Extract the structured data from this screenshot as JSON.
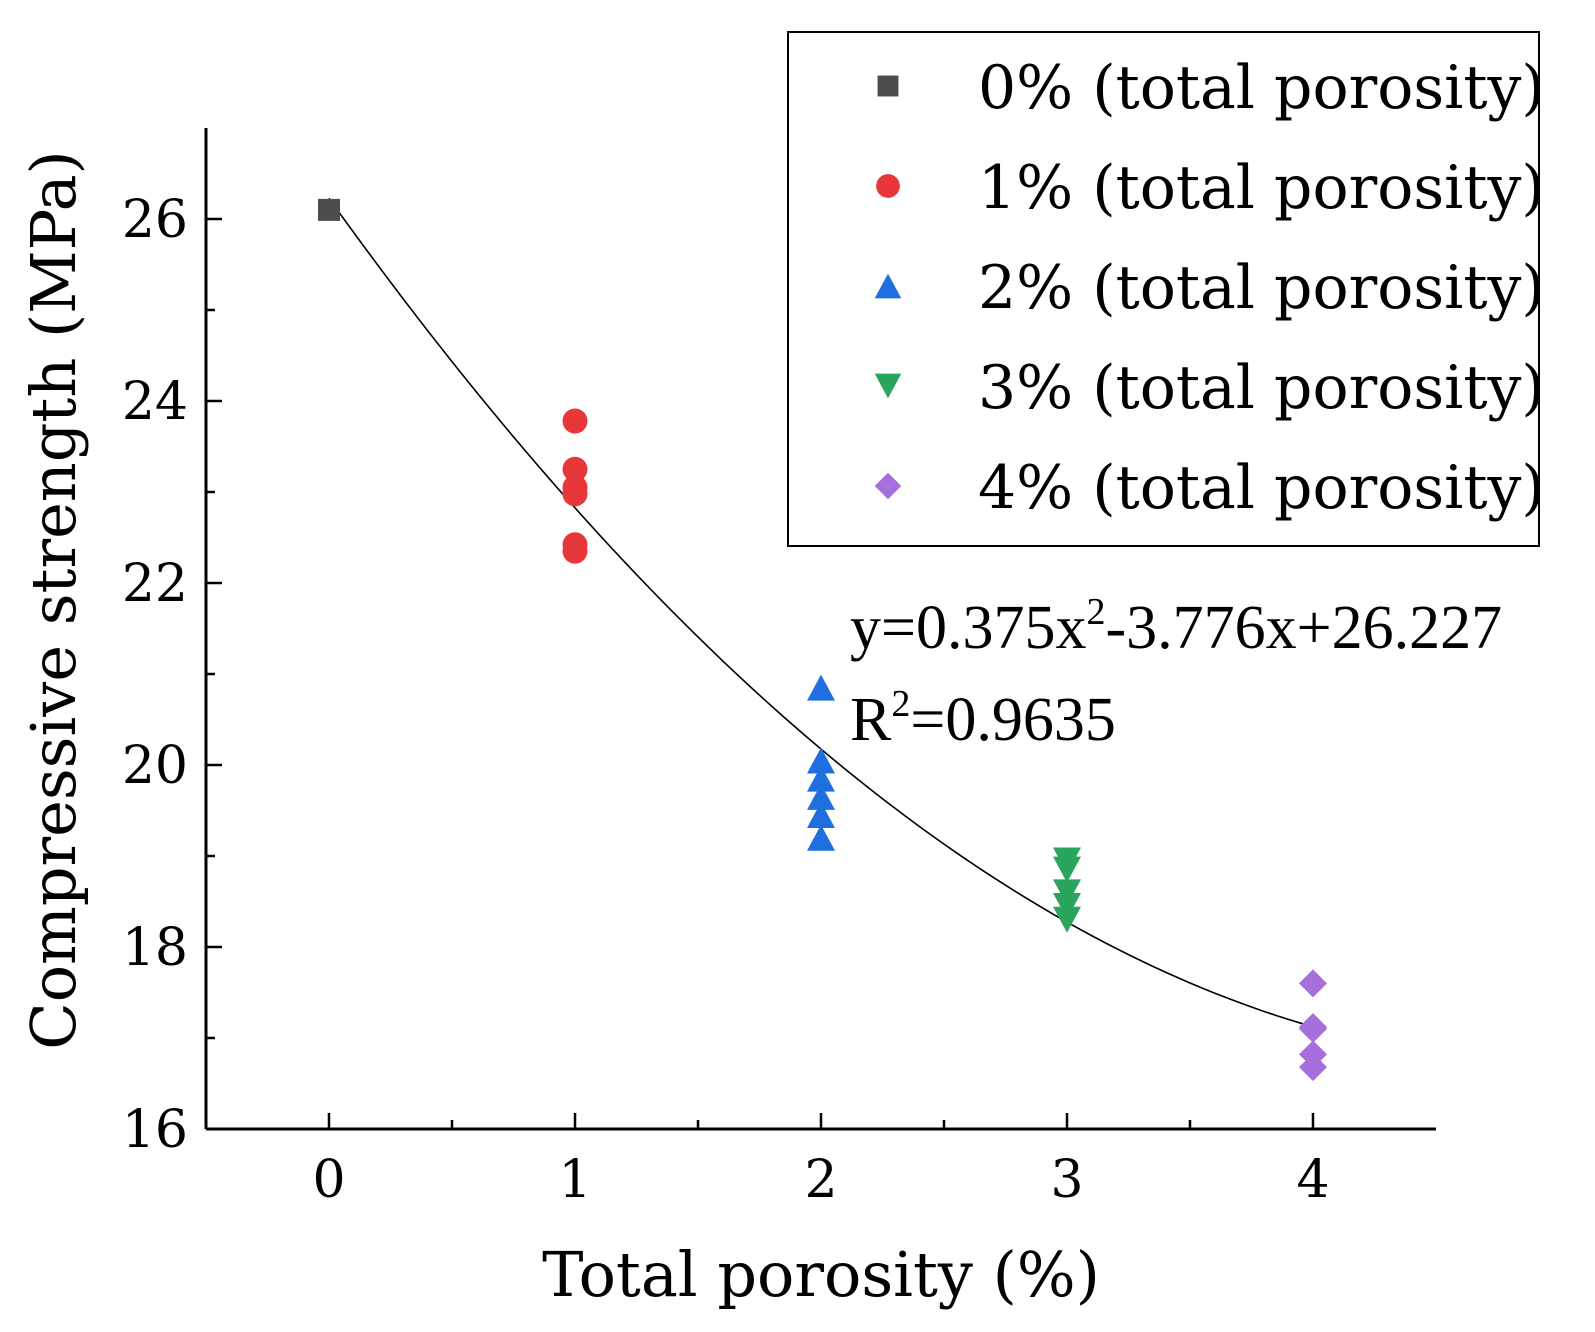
{
  "chart_data": {
    "type": "scatter",
    "title": "",
    "xlabel": "Total porosity (%)",
    "ylabel": "Compressive strength (MPa)",
    "xlim": [
      -0.5,
      4.5
    ],
    "ylim": [
      16,
      27
    ],
    "x_major_ticks": [
      0,
      1,
      2,
      3,
      4
    ],
    "x_minor_ticks": [
      0.5,
      1.5,
      2.5,
      3.5
    ],
    "y_major_ticks": [
      16,
      18,
      20,
      22,
      24,
      26
    ],
    "y_minor_ticks": [
      17,
      19,
      21,
      23,
      25
    ],
    "grid": false,
    "legend_position": "top-right",
    "series": [
      {
        "name": "0% (total porosity)",
        "marker": "square",
        "color": "#4d4d4d",
        "x": [
          0
        ],
        "y": [
          26.1
        ]
      },
      {
        "name": "1% (total porosity)",
        "marker": "circle",
        "color": "#e8373a",
        "x": [
          1,
          1,
          1,
          1,
          1,
          1
        ],
        "y": [
          23.78,
          23.25,
          23.05,
          22.98,
          22.42,
          22.35
        ]
      },
      {
        "name": "2% (total porosity)",
        "marker": "triangle-up",
        "color": "#1f6fe0",
        "x": [
          2,
          2,
          2,
          2,
          2,
          2
        ],
        "y": [
          20.85,
          20.05,
          19.85,
          19.65,
          19.45,
          19.2
        ]
      },
      {
        "name": "3% (total porosity)",
        "marker": "triangle-down",
        "color": "#2aa55e",
        "x": [
          3,
          3,
          3,
          3,
          3
        ],
        "y": [
          18.95,
          18.85,
          18.6,
          18.45,
          18.3
        ]
      },
      {
        "name": "4% (total porosity)",
        "marker": "diamond",
        "color": "#a66fdc",
        "x": [
          4,
          4,
          4,
          4,
          4
        ],
        "y": [
          17.6,
          17.12,
          17.1,
          16.82,
          16.68
        ]
      }
    ],
    "fit": {
      "type": "quadratic",
      "a": 0.375,
      "b": -3.776,
      "c": 26.227,
      "x_range": [
        0,
        4
      ],
      "equation_text": "y=0.375x",
      "equation_sup": "2",
      "equation_rest": "-3.776x+26.227",
      "r2_prefix": "R",
      "r2_sup": "2",
      "r2_rest": "=0.9635"
    }
  }
}
